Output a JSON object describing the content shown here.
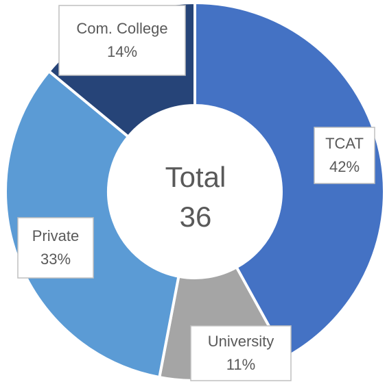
{
  "chart_data": {
    "type": "donut",
    "categories": [
      "TCAT",
      "University",
      "Private",
      "Com. College"
    ],
    "values": [
      42,
      11,
      33,
      14
    ],
    "value_labels": [
      "42%",
      "11%",
      "33%",
      "14%"
    ],
    "colors": [
      "#4472c4",
      "#a5a5a5",
      "#5b9bd5",
      "#264478"
    ],
    "center_title": "Total",
    "center_value": 36
  }
}
